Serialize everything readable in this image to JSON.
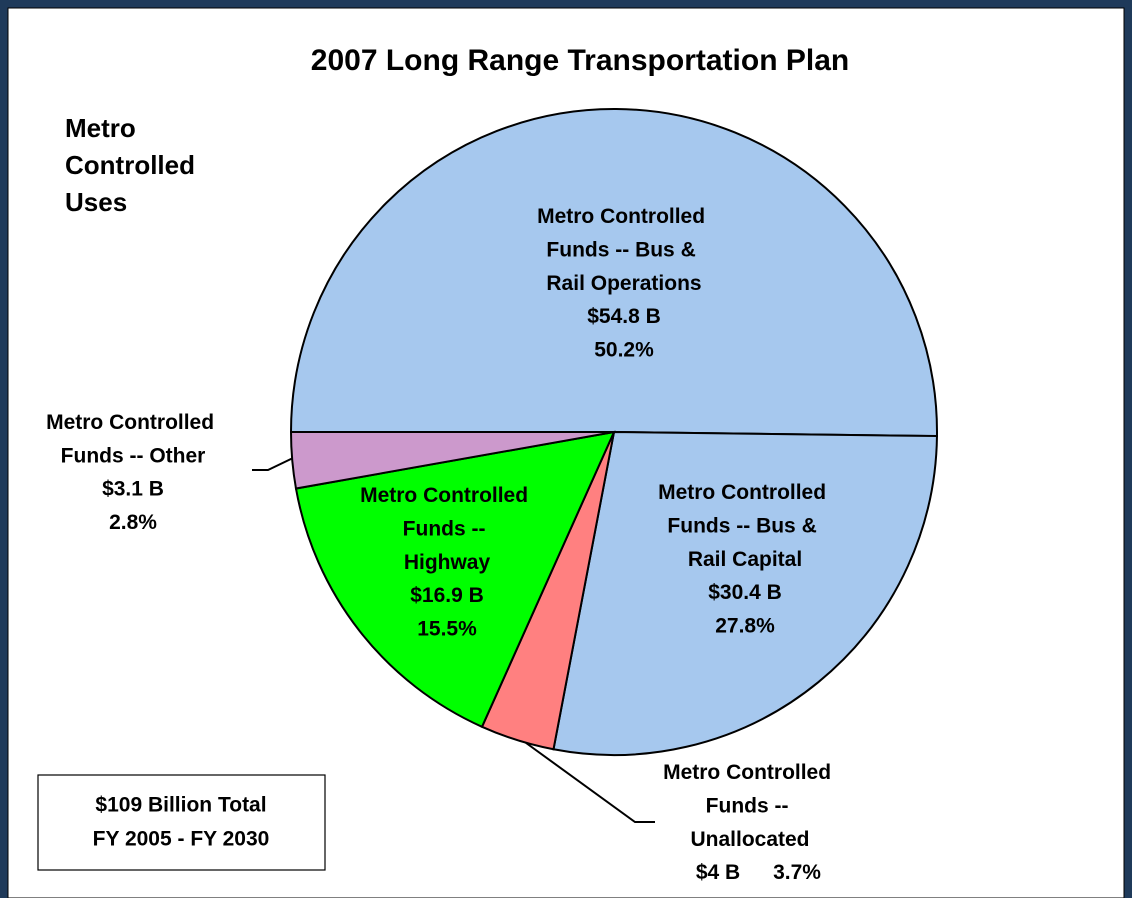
{
  "chart_data": {
    "type": "pie",
    "title": "2007 Long Range Transportation Plan",
    "subtitle": "Metro Controlled Uses",
    "categories": [
      "Metro Controlled Funds -- Bus & Rail Operations",
      "Metro Controlled Funds -- Bus & Rail Capital",
      "Metro Controlled Funds -- Unallocated",
      "Metro Controlled Funds -- Highway",
      "Metro Controlled Funds -- Other"
    ],
    "values": [
      50.2,
      27.8,
      3.7,
      15.5,
      2.8
    ],
    "value_labels": [
      "50.2%",
      "27.8%",
      "3.7%",
      "15.5%",
      "2.8%"
    ],
    "amounts": [
      54.8,
      30.4,
      4,
      16.9,
      3.1
    ],
    "amount_labels": [
      "$54.8 B",
      "$30.4 B",
      "$4 B",
      "$16.9 B",
      "$3.1 B"
    ],
    "colors": [
      "#a6c8ee",
      "#a6c8ee",
      "#ff8080",
      "#00ff00",
      "#cc99cc"
    ],
    "annotation": [
      "$109 Billion Total",
      "FY 2005 - FY 2030"
    ]
  }
}
